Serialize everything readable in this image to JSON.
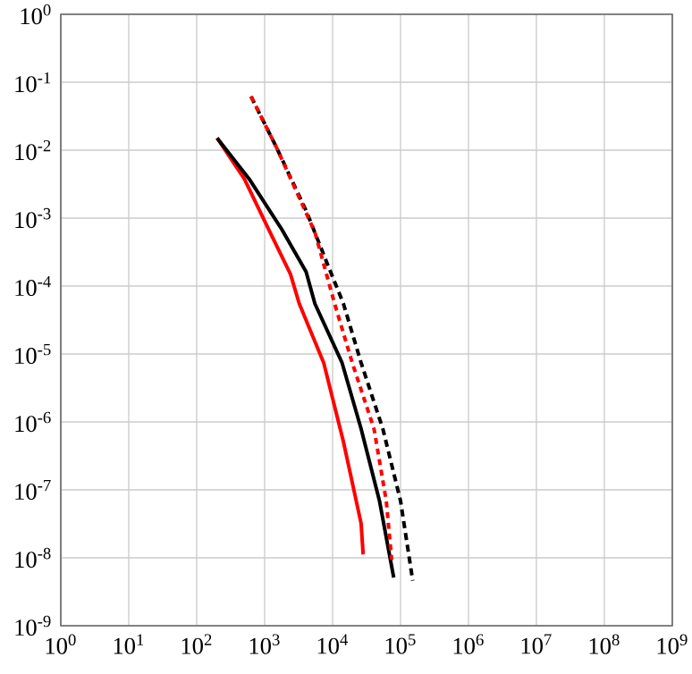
{
  "chart_data": {
    "type": "line",
    "log": "xy",
    "grid": true,
    "xlim": [
      1,
      1000000000
    ],
    "ylim": [
      1e-09,
      1
    ],
    "xticks": [
      {
        "value": 1,
        "label": "10$^{0}$"
      },
      {
        "value": 10,
        "label": "10$^{1}$"
      },
      {
        "value": 100,
        "label": "10$^{2}$"
      },
      {
        "value": 1000,
        "label": "10$^{3}$"
      },
      {
        "value": 10000,
        "label": "10$^{4}$"
      },
      {
        "value": 100000,
        "label": "10$^{5}$"
      },
      {
        "value": 1000000,
        "label": "10$^{6}$"
      },
      {
        "value": 10000000,
        "label": "10$^{7}$"
      },
      {
        "value": 100000000,
        "label": "10$^{8}$"
      },
      {
        "value": 1000000000,
        "label": "10$^{9}$"
      }
    ],
    "yticks": [
      {
        "value": 1e-09,
        "label": "10$^{-9}$"
      },
      {
        "value": 1e-08,
        "label": "10$^{-8}$"
      },
      {
        "value": 1e-07,
        "label": "10$^{-7}$"
      },
      {
        "value": 1e-06,
        "label": "10$^{-6}$"
      },
      {
        "value": 1e-05,
        "label": "10$^{-5}$"
      },
      {
        "value": 0.0001,
        "label": "10$^{-4}$"
      },
      {
        "value": 0.001,
        "label": "10$^{-3}$"
      },
      {
        "value": 0.01,
        "label": "10$^{-2}$"
      },
      {
        "value": 0.1,
        "label": "10$^{-1}$"
      },
      {
        "value": 1,
        "label": "10$^{0}$"
      }
    ],
    "series": [
      {
        "color": "#ff0000",
        "line_style": "dashed",
        "x": [
          631,
          1479,
          5495,
          10715,
          19498,
          40738,
          61660,
          74131
        ],
        "values": [
          0.0617,
          0.0112,
          0.00062,
          5.5e-05,
          7.4e-06,
          7.9e-07,
          6.9e-08,
          9.3e-09
        ]
      },
      {
        "color": "#000000",
        "line_style": "dashed",
        "x": [
          631,
          1479,
          4074,
          8913,
          14454,
          26303,
          54954,
          100000,
          151356
        ],
        "values": [
          0.0617,
          0.0112,
          0.00129,
          0.000182,
          5.5e-05,
          7.4e-06,
          7.9e-07,
          6.9e-08,
          4.6e-09
        ]
      },
      {
        "color": "#ff0000",
        "line_style": "solid",
        "x": [
          200,
          501,
          1318,
          2399,
          3236,
          7413,
          14454,
          26303,
          28184
        ],
        "values": [
          0.0151,
          0.0038,
          0.00051,
          0.00015,
          5.5e-05,
          7.4e-06,
          5.1e-07,
          3.2e-08,
          1.12e-08
        ]
      },
      {
        "color": "#000000",
        "line_style": "solid",
        "x": [
          200,
          589,
          1778,
          4074,
          5495,
          13804,
          26303,
          48978,
          79433
        ],
        "values": [
          0.0151,
          0.0038,
          0.00069,
          0.000162,
          5.5e-05,
          7.4e-06,
          7.9e-07,
          6.9e-08,
          5.1e-09
        ]
      }
    ]
  }
}
